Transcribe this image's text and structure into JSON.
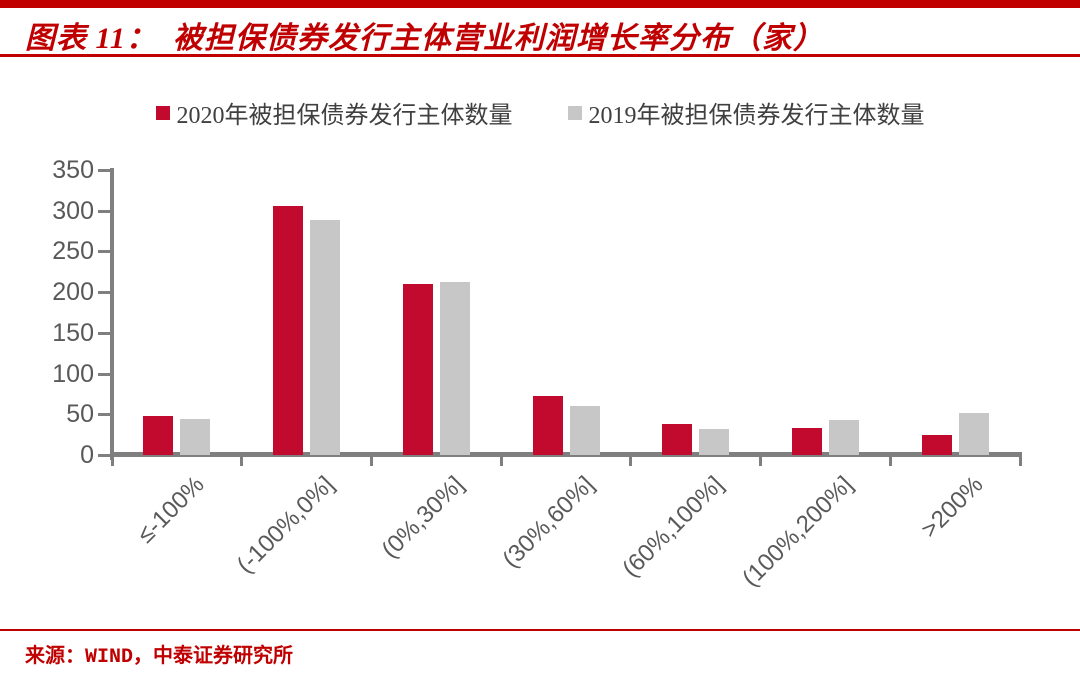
{
  "title": {
    "prefix": "图表 11：",
    "text": "被担保债券发行主体营业利润增长率分布（家）"
  },
  "chart_data": {
    "type": "bar",
    "title": "被担保债券发行主体营业利润增长率分布（家）",
    "categories": [
      "≤-100%",
      "(-100%,0%]",
      "(0%,30%]",
      "(30%,60%]",
      "(60%,100%]",
      "(100%,200%]",
      ">200%"
    ],
    "series": [
      {
        "name": "2020年被担保债券发行主体数量",
        "color": "#C20A2E",
        "values": [
          48,
          306,
          210,
          72,
          38,
          33,
          25
        ]
      },
      {
        "name": "2019年被担保债券发行主体数量",
        "color": "#C7C7C7",
        "values": [
          44,
          289,
          213,
          60,
          32,
          43,
          52
        ]
      }
    ],
    "ylim": [
      0,
      350
    ],
    "yticks": [
      0,
      50,
      100,
      150,
      200,
      250,
      300,
      350
    ],
    "legend_position": "top-center",
    "grid": false
  },
  "source": {
    "text": "来源：WIND，中泰证券研究所"
  },
  "colors": {
    "accent": "#C00000",
    "axis": "#7F7F7F",
    "tick_label": "#595959",
    "legend_text": "#404040"
  }
}
